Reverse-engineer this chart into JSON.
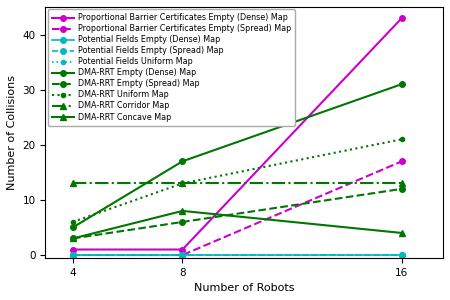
{
  "x": [
    4,
    8,
    16
  ],
  "series": [
    {
      "label": "Proportional Barrier Certificates Empty (Dense) Map",
      "color": "#cc00cc",
      "linestyle": "-",
      "marker": "o",
      "markersize": 4,
      "linewidth": 1.5,
      "values": [
        1,
        1,
        43
      ]
    },
    {
      "label": "Proportional Barrier Certificates Empty (Spread) Map",
      "color": "#cc00cc",
      "linestyle": "--",
      "marker": "o",
      "markersize": 4,
      "linewidth": 1.5,
      "values": [
        0,
        0,
        17
      ]
    },
    {
      "label": "Potential Fields Empty (Dense) Map",
      "color": "#00bbbb",
      "linestyle": "-",
      "marker": "o",
      "markersize": 4,
      "linewidth": 1.2,
      "values": [
        0,
        0,
        0
      ]
    },
    {
      "label": "Potential Fields Empty (Spread) Map",
      "color": "#00bbbb",
      "linestyle": "--",
      "marker": "o",
      "markersize": 4,
      "linewidth": 1.2,
      "values": [
        0,
        0,
        0
      ]
    },
    {
      "label": "Potential Fields Uniform Map",
      "color": "#00bbbb",
      "linestyle": ":",
      "marker": "o",
      "markersize": 3,
      "linewidth": 1.2,
      "values": [
        0,
        0,
        0
      ]
    },
    {
      "label": "DMA-RRT Empty (Dense) Map",
      "color": "#007700",
      "linestyle": "-",
      "marker": "o",
      "markersize": 4,
      "linewidth": 1.5,
      "values": [
        5,
        17,
        31
      ]
    },
    {
      "label": "DMA-RRT Empty (Spread) Map",
      "color": "#007700",
      "linestyle": "--",
      "marker": "o",
      "markersize": 4,
      "linewidth": 1.5,
      "values": [
        3,
        6,
        12
      ]
    },
    {
      "label": "DMA-RRT Uniform Map",
      "color": "#007700",
      "linestyle": ":",
      "marker": "o",
      "markersize": 3,
      "linewidth": 1.5,
      "values": [
        6,
        13,
        21
      ]
    },
    {
      "label": "DMA-RRT Corridor Map",
      "color": "#007700",
      "linestyle": "-.",
      "marker": "^",
      "markersize": 4,
      "linewidth": 1.5,
      "values": [
        13,
        13,
        13
      ]
    },
    {
      "label": "DMA-RRT Concave Map",
      "color": "#007700",
      "linestyle": "-",
      "marker": "^",
      "markersize": 4,
      "linewidth": 1.5,
      "values": [
        3,
        8,
        4
      ]
    }
  ],
  "xlabel": "Number of Robots",
  "ylabel": "Number of Collisions",
  "xlim": [
    3.0,
    17.5
  ],
  "ylim": [
    -0.5,
    45
  ],
  "yticks": [
    0,
    10,
    20,
    30,
    40
  ],
  "xticks": [
    4,
    8,
    16
  ],
  "background_color": "#ffffff",
  "legend_fontsize": 5.8,
  "axis_label_fontsize": 8,
  "tick_fontsize": 7.5
}
